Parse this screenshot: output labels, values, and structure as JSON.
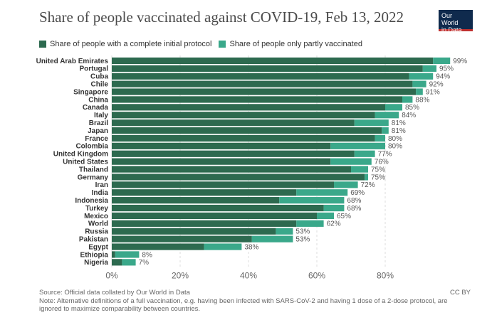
{
  "title": "Share of people vaccinated against COVID-19, Feb 13, 2022",
  "logo": {
    "line1": "Our World",
    "line2": "in Data"
  },
  "colors": {
    "full": "#2d6a4f",
    "partial": "#3aa88a",
    "grid": "#dddddd",
    "tick": "#666666",
    "label": "#333333"
  },
  "chart_data": {
    "type": "bar",
    "orientation": "horizontal",
    "stacked": true,
    "categories": [
      "United Arab Emirates",
      "Portugal",
      "Cuba",
      "Chile",
      "Singapore",
      "China",
      "Canada",
      "Italy",
      "Brazil",
      "Japan",
      "France",
      "Colombia",
      "United Kingdom",
      "United States",
      "Thailand",
      "Germany",
      "Iran",
      "India",
      "Indonesia",
      "Turkey",
      "Mexico",
      "World",
      "Russia",
      "Pakistan",
      "Egypt",
      "Ethiopia",
      "Nigeria"
    ],
    "series": [
      {
        "name": "Share of people with a complete initial protocol",
        "values": [
          94,
          91,
          87,
          88,
          89,
          85,
          80,
          77,
          71,
          79,
          77,
          64,
          71,
          64,
          70,
          74,
          65,
          54,
          49,
          62,
          60,
          54,
          48,
          41,
          27,
          1,
          3
        ]
      },
      {
        "name": "Share of people only partly vaccinated",
        "values": [
          5,
          4,
          7,
          4,
          2,
          3,
          5,
          7,
          10,
          2,
          3,
          16,
          6,
          12,
          5,
          1,
          7,
          15,
          19,
          6,
          5,
          8,
          5,
          12,
          11,
          7,
          4
        ]
      }
    ],
    "totals_labels": [
      "99%",
      "95%",
      "94%",
      "92%",
      "91%",
      "88%",
      "85%",
      "84%",
      "81%",
      "81%",
      "80%",
      "80%",
      "77%",
      "76%",
      "75%",
      "75%",
      "72%",
      "69%",
      "68%",
      "68%",
      "65%",
      "62%",
      "53%",
      "53%",
      "38%",
      "8%",
      "7%"
    ],
    "xlim": [
      0,
      100
    ],
    "xticks": [
      0,
      20,
      40,
      60,
      80
    ],
    "xtick_labels": [
      "0%",
      "20%",
      "40%",
      "60%",
      "80%"
    ],
    "grid": true,
    "legend_position": "top-left"
  },
  "footer": {
    "source": "Source: Official data collated by Our World in Data",
    "note_line1": "Note: Alternative definitions of a full vaccination, e.g. having been infected with SARS-CoV-2 and having 1 dose of a 2-dose protocol, are",
    "note_line2": "ignored to maximize comparability between countries.",
    "license": "CC BY"
  }
}
